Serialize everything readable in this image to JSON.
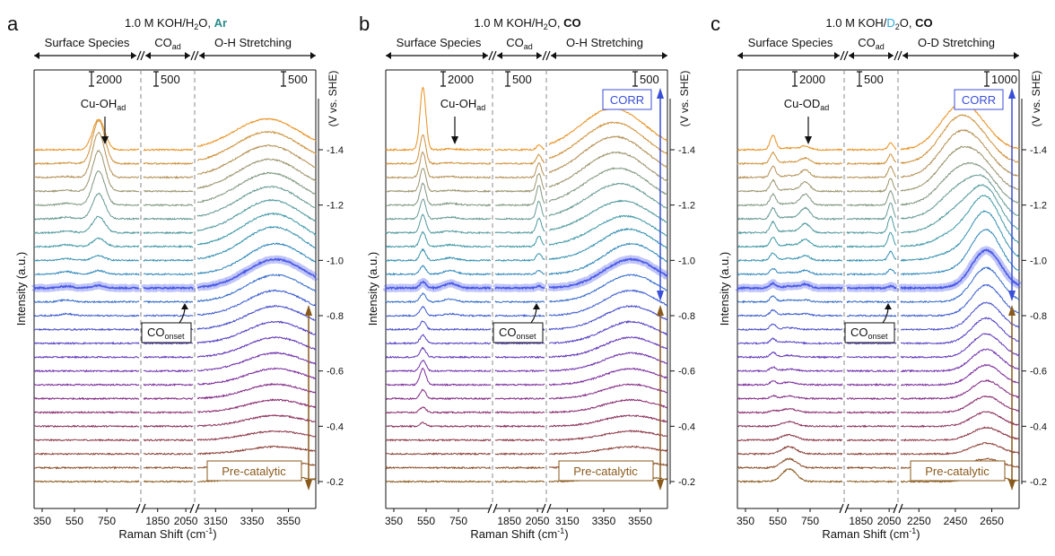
{
  "chart_data": [
    {
      "type": "line",
      "panel_letter": "a",
      "title_prefix": "1.0 M KOH/H",
      "title_sub": "2",
      "title_mid": "O, ",
      "title_gas": "Ar",
      "title_gas_color": "#2a8a8a",
      "regions": [
        "Surface Species",
        "CO",
        "O-H Stretching"
      ],
      "region_sub": "ad",
      "scale_bars": [
        "2000",
        "500",
        "500"
      ],
      "x_ticks": [
        {
          "seg": 0,
          "value": 350,
          "label": "350"
        },
        {
          "seg": 0,
          "value": 550,
          "label": "550"
        },
        {
          "seg": 0,
          "value": 750,
          "label": "750"
        },
        {
          "seg": 1,
          "value": 1850,
          "label": "1850"
        },
        {
          "seg": 1,
          "value": 2050,
          "label": "2050"
        },
        {
          "seg": 2,
          "value": 3150,
          "label": "3150"
        },
        {
          "seg": 2,
          "value": 3350,
          "label": "3350"
        },
        {
          "seg": 2,
          "value": 3550,
          "label": "3550"
        }
      ],
      "segments": [
        [
          300,
          950
        ],
        [
          1750,
          2100
        ],
        [
          3050,
          3700
        ]
      ],
      "xlabel": "Raman Shift (cm",
      "xlabel_sup": "-1",
      "xlabel_end": ")",
      "ylabel": "Intensity (a.u.)",
      "y2label": "(V vs. SHE)",
      "potential_ticks": [
        "-1.4",
        "-1.2",
        "-1.0",
        "-0.8",
        "-0.6",
        "-0.4",
        "-0.2"
      ],
      "potential_range": [
        -0.2,
        -1.4
      ],
      "potentials": [
        -0.2,
        -0.25,
        -0.3,
        -0.35,
        -0.4,
        -0.45,
        -0.5,
        -0.55,
        -0.6,
        -0.65,
        -0.7,
        -0.75,
        -0.8,
        -0.85,
        -0.9,
        -0.95,
        -1.0,
        -1.05,
        -1.1,
        -1.15,
        -1.2,
        -1.25,
        -1.3,
        -1.35,
        -1.4
      ],
      "peaks": [
        {
          "seg": 0,
          "center": 700,
          "width": 38,
          "amp": [
            0,
            0,
            0,
            0,
            0,
            0,
            0,
            0,
            0,
            0,
            0,
            0,
            0,
            0,
            3,
            4,
            5,
            9,
            18,
            28,
            38,
            45,
            50,
            48,
            34
          ]
        },
        {
          "seg": 0,
          "center": 500,
          "width": 40,
          "amp": [
            0,
            0,
            0,
            0,
            0,
            0,
            0,
            0,
            0,
            0,
            0,
            0,
            2,
            2,
            2,
            3,
            2,
            2,
            2,
            2,
            2,
            1,
            1,
            1,
            0
          ]
        },
        {
          "seg": 2,
          "center": 3480,
          "width": 160,
          "amp": [
            6,
            7,
            8,
            10,
            12,
            14,
            16,
            18,
            20,
            22,
            24,
            26,
            28,
            30,
            32,
            34,
            34,
            32,
            30,
            28,
            27,
            26,
            25,
            24,
            22
          ]
        },
        {
          "seg": 2,
          "center": 3350,
          "width": 170,
          "amp": [
            0,
            0,
            0,
            0,
            0,
            0,
            0,
            0,
            0,
            0,
            0,
            0,
            0,
            0,
            0,
            0,
            4,
            6,
            8,
            10,
            11,
            12,
            13,
            14,
            15
          ]
        }
      ],
      "onset_label": "CO",
      "onset_sub": "onset",
      "peak_label": "Cu-OH",
      "peak_sub": "ad",
      "corr_label": "",
      "precat_label": "Pre-catalytic"
    },
    {
      "type": "line",
      "panel_letter": "b",
      "title_prefix": "1.0 M KOH/H",
      "title_sub": "2",
      "title_mid": "O, ",
      "title_gas": "CO",
      "title_gas_color": "#111111",
      "regions": [
        "Surface Species",
        "CO",
        "O-H Stretching"
      ],
      "region_sub": "ad",
      "scale_bars": [
        "2000",
        "500",
        "500"
      ],
      "x_ticks": [
        {
          "seg": 0,
          "value": 350,
          "label": "350"
        },
        {
          "seg": 0,
          "value": 550,
          "label": "550"
        },
        {
          "seg": 0,
          "value": 750,
          "label": "750"
        },
        {
          "seg": 1,
          "value": 1850,
          "label": "1850"
        },
        {
          "seg": 1,
          "value": 2050,
          "label": "2050"
        },
        {
          "seg": 2,
          "value": 3150,
          "label": "3150"
        },
        {
          "seg": 2,
          "value": 3350,
          "label": "3350"
        },
        {
          "seg": 2,
          "value": 3550,
          "label": "3550"
        }
      ],
      "segments": [
        [
          300,
          950
        ],
        [
          1750,
          2100
        ],
        [
          3050,
          3700
        ]
      ],
      "xlabel": "Raman Shift (cm",
      "xlabel_sup": "-1",
      "xlabel_end": ")",
      "ylabel": "Intensity (a.u.)",
      "y2label": "(V vs. SHE)",
      "potential_ticks": [
        "-1.4",
        "-1.2",
        "-1.0",
        "-0.8",
        "-0.6",
        "-0.4",
        "-0.2"
      ],
      "potential_range": [
        -0.2,
        -1.4
      ],
      "potentials": [
        -0.2,
        -0.25,
        -0.3,
        -0.35,
        -0.4,
        -0.45,
        -0.5,
        -0.55,
        -0.6,
        -0.65,
        -0.7,
        -0.75,
        -0.8,
        -0.85,
        -0.9,
        -0.95,
        -1.0,
        -1.05,
        -1.1,
        -1.15,
        -1.2,
        -1.25,
        -1.3,
        -1.35,
        -1.4
      ],
      "peaks": [
        {
          "seg": 0,
          "center": 530,
          "width": 18,
          "amp": [
            0,
            0,
            0,
            0,
            4,
            6,
            10,
            18,
            12,
            10,
            9,
            9,
            10,
            9,
            7,
            9,
            12,
            16,
            20,
            22,
            24,
            26,
            28,
            32,
            70
          ]
        },
        {
          "seg": 0,
          "center": 700,
          "width": 40,
          "amp": [
            0,
            0,
            0,
            0,
            0,
            0,
            0,
            0,
            0,
            0,
            0,
            0,
            2,
            3,
            5,
            4,
            3,
            2,
            2,
            2,
            2,
            1,
            1,
            1,
            1
          ]
        },
        {
          "seg": 1,
          "center": 2060,
          "width": 18,
          "amp": [
            0,
            0,
            0,
            0,
            0,
            0,
            0,
            0,
            0,
            0,
            0,
            0,
            0,
            0,
            2,
            4,
            8,
            12,
            16,
            20,
            22,
            20,
            16,
            10,
            5
          ]
        },
        {
          "seg": 2,
          "center": 3500,
          "width": 150,
          "amp": [
            6,
            7,
            8,
            10,
            12,
            14,
            16,
            18,
            20,
            22,
            24,
            26,
            28,
            30,
            32,
            34,
            30,
            24,
            20,
            18,
            16,
            14,
            12,
            10,
            8
          ]
        },
        {
          "seg": 2,
          "center": 3380,
          "width": 170,
          "amp": [
            0,
            0,
            0,
            0,
            0,
            0,
            0,
            0,
            0,
            0,
            0,
            0,
            0,
            0,
            0,
            0,
            6,
            12,
            18,
            24,
            28,
            32,
            36,
            38,
            40
          ]
        }
      ],
      "onset_label": "CO",
      "onset_sub": "onset",
      "peak_label": "Cu-OH",
      "peak_sub": "ad",
      "corr_label": "CORR",
      "precat_label": "Pre-catalytic"
    },
    {
      "type": "line",
      "panel_letter": "c",
      "title_prefix": "1.0 M KOH/",
      "title_sub": "2",
      "title_mid": "O, ",
      "title_gas": "CO",
      "title_gas_color": "#111111",
      "title_d": "D",
      "title_d_color": "#29a8e0",
      "regions": [
        "Surface Species",
        "CO",
        "O-D Stretching"
      ],
      "region_sub": "ad",
      "scale_bars": [
        "2000",
        "500",
        "1000"
      ],
      "x_ticks": [
        {
          "seg": 0,
          "value": 350,
          "label": "350"
        },
        {
          "seg": 0,
          "value": 550,
          "label": "550"
        },
        {
          "seg": 0,
          "value": 750,
          "label": "750"
        },
        {
          "seg": 1,
          "value": 1850,
          "label": "1850"
        },
        {
          "seg": 1,
          "value": 2050,
          "label": "2050"
        },
        {
          "seg": 2,
          "value": 2250,
          "label": "2250"
        },
        {
          "seg": 2,
          "value": 2450,
          "label": "2450"
        },
        {
          "seg": 2,
          "value": 2650,
          "label": "2650"
        }
      ],
      "segments": [
        [
          300,
          950
        ],
        [
          1750,
          2100
        ],
        [
          2150,
          2800
        ]
      ],
      "xlabel": "Raman Shift (cm",
      "xlabel_sup": "-1",
      "xlabel_end": ")",
      "ylabel": "Intensity (a.u.)",
      "y2label": "(V vs. SHE)",
      "potential_ticks": [
        "-1.4",
        "-1.2",
        "-1.0",
        "-0.8",
        "-0.6",
        "-0.4",
        "-0.2"
      ],
      "potential_range": [
        -0.2,
        -1.4
      ],
      "potentials": [
        -0.2,
        -0.25,
        -0.3,
        -0.35,
        -0.4,
        -0.45,
        -0.5,
        -0.55,
        -0.6,
        -0.65,
        -0.7,
        -0.75,
        -0.8,
        -0.85,
        -0.9,
        -0.95,
        -1.0,
        -1.05,
        -1.1,
        -1.15,
        -1.2,
        -1.25,
        -1.3,
        -1.35,
        -1.4
      ],
      "peaks": [
        {
          "seg": 0,
          "center": 620,
          "width": 45,
          "amp": [
            14,
            10,
            8,
            6,
            5,
            4,
            3,
            3,
            2,
            2,
            2,
            2,
            2,
            2,
            2,
            2,
            2,
            2,
            2,
            2,
            2,
            2,
            2,
            2,
            2
          ]
        },
        {
          "seg": 0,
          "center": 520,
          "width": 18,
          "amp": [
            0,
            0,
            0,
            0,
            0,
            2,
            3,
            4,
            4,
            5,
            5,
            6,
            6,
            6,
            5,
            6,
            8,
            10,
            12,
            12,
            12,
            12,
            12,
            12,
            16
          ]
        },
        {
          "seg": 0,
          "center": 720,
          "width": 30,
          "amp": [
            0,
            0,
            0,
            0,
            0,
            0,
            0,
            0,
            0,
            0,
            0,
            0,
            2,
            2,
            4,
            4,
            5,
            8,
            10,
            12,
            12,
            10,
            8,
            6,
            4
          ]
        },
        {
          "seg": 1,
          "center": 2060,
          "width": 18,
          "amp": [
            0,
            0,
            0,
            0,
            0,
            0,
            0,
            0,
            0,
            0,
            0,
            0,
            0,
            0,
            2,
            6,
            10,
            16,
            18,
            18,
            16,
            14,
            12,
            10,
            8
          ]
        },
        {
          "seg": 2,
          "center": 2620,
          "width": 80,
          "amp": [
            8,
            10,
            12,
            14,
            16,
            18,
            20,
            22,
            24,
            26,
            28,
            30,
            34,
            38,
            42,
            48,
            50,
            48,
            40,
            30,
            20,
            14,
            10,
            8,
            6
          ]
        },
        {
          "seg": 2,
          "center": 2480,
          "width": 110,
          "amp": [
            0,
            0,
            0,
            0,
            0,
            0,
            0,
            0,
            0,
            0,
            0,
            0,
            0,
            0,
            0,
            4,
            10,
            18,
            26,
            34,
            40,
            46,
            50,
            52,
            50
          ]
        }
      ],
      "onset_label": "CO",
      "onset_sub": "onset",
      "peak_label": "Cu-OD",
      "peak_sub": "ad",
      "corr_label": "CORR",
      "precat_label": "Pre-catalytic"
    }
  ],
  "colors": {
    "precat": "#8a5a1c",
    "corr": "#3a4fd8",
    "highlight": "#4a5ae8",
    "gradient": [
      "#8a5a1c",
      "#8a3a3a",
      "#8a2a6a",
      "#7a2aa0",
      "#5a3ac0",
      "#3a5ad0",
      "#2a80c0",
      "#3a98a8",
      "#6a9a90",
      "#a89060",
      "#e8901e"
    ]
  }
}
